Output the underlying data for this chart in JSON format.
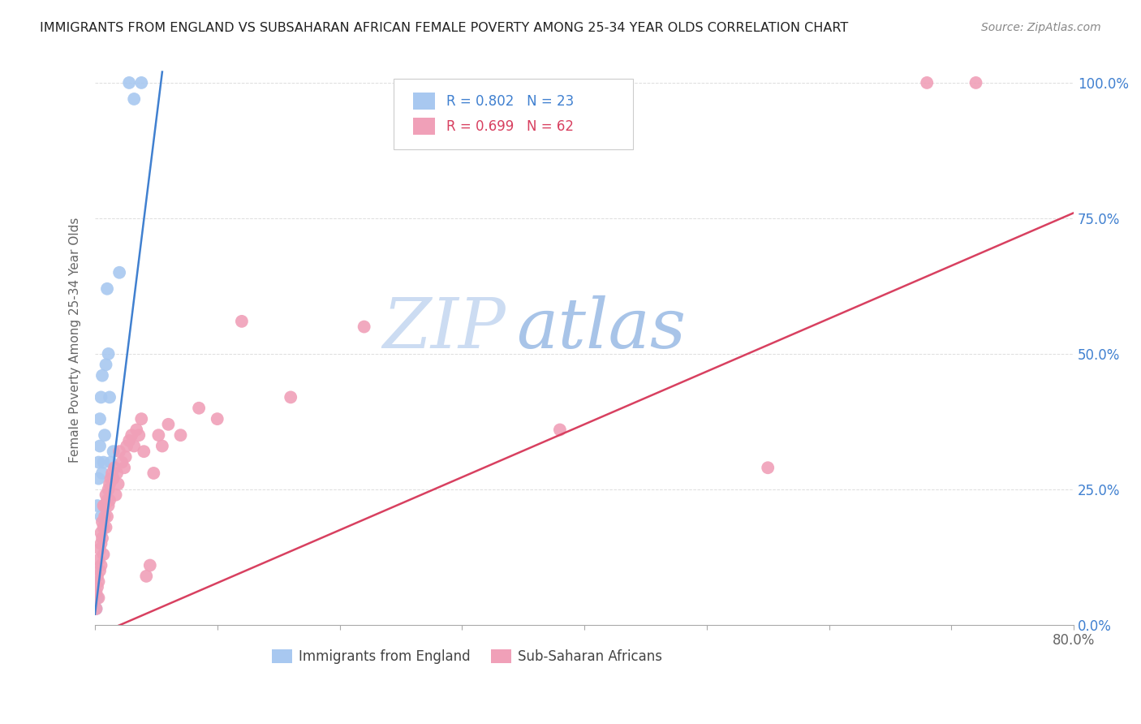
{
  "title": "IMMIGRANTS FROM ENGLAND VS SUBSAHARAN AFRICAN FEMALE POVERTY AMONG 25-34 YEAR OLDS CORRELATION CHART",
  "source": "Source: ZipAtlas.com",
  "ylabel": "Female Poverty Among 25-34 Year Olds",
  "ytick_labels": [
    "0.0%",
    "25.0%",
    "50.0%",
    "75.0%",
    "100.0%"
  ],
  "ytick_values": [
    0.0,
    0.25,
    0.5,
    0.75,
    1.0
  ],
  "xtick_values": [
    0.0,
    0.1,
    0.2,
    0.3,
    0.4,
    0.5,
    0.6,
    0.7,
    0.8
  ],
  "xtick_labels_show": {
    "0": "0.0%",
    "0.8": "80.0%"
  },
  "xlim": [
    0.0,
    0.8
  ],
  "ylim": [
    0.0,
    1.05
  ],
  "blue_R": 0.802,
  "blue_N": 23,
  "pink_R": 0.699,
  "pink_N": 62,
  "legend_label_blue": "Immigrants from England",
  "legend_label_pink": "Sub-Saharan Africans",
  "blue_color": "#a8c8f0",
  "pink_color": "#f0a0b8",
  "blue_line_color": "#4080d0",
  "pink_line_color": "#d84060",
  "watermark_zip_color": "#c8d8f0",
  "watermark_atlas_color": "#a0c0e8",
  "blue_line_x0": 0.0,
  "blue_line_y0": 0.02,
  "blue_line_x1": 0.055,
  "blue_line_y1": 1.02,
  "pink_line_x0": 0.0,
  "pink_line_y0": -0.02,
  "pink_line_x1": 0.8,
  "pink_line_y1": 0.76,
  "blue_x": [
    0.001,
    0.002,
    0.002,
    0.003,
    0.003,
    0.004,
    0.004,
    0.005,
    0.005,
    0.006,
    0.006,
    0.007,
    0.008,
    0.009,
    0.01,
    0.011,
    0.012,
    0.013,
    0.015,
    0.02,
    0.028,
    0.032,
    0.038
  ],
  "blue_y": [
    0.03,
    0.05,
    0.22,
    0.27,
    0.3,
    0.33,
    0.38,
    0.2,
    0.42,
    0.46,
    0.28,
    0.3,
    0.35,
    0.48,
    0.62,
    0.5,
    0.42,
    0.3,
    0.32,
    0.65,
    1.0,
    0.97,
    1.0
  ],
  "pink_x": [
    0.001,
    0.001,
    0.002,
    0.002,
    0.003,
    0.003,
    0.003,
    0.004,
    0.004,
    0.005,
    0.005,
    0.005,
    0.006,
    0.006,
    0.007,
    0.007,
    0.007,
    0.008,
    0.008,
    0.009,
    0.009,
    0.01,
    0.01,
    0.011,
    0.011,
    0.012,
    0.012,
    0.013,
    0.014,
    0.015,
    0.016,
    0.017,
    0.018,
    0.019,
    0.02,
    0.022,
    0.024,
    0.025,
    0.026,
    0.028,
    0.03,
    0.032,
    0.034,
    0.036,
    0.038,
    0.04,
    0.042,
    0.045,
    0.048,
    0.052,
    0.055,
    0.06,
    0.07,
    0.085,
    0.1,
    0.12,
    0.16,
    0.22,
    0.38,
    0.55,
    0.68,
    0.72
  ],
  "pink_y": [
    0.03,
    0.06,
    0.07,
    0.09,
    0.05,
    0.08,
    0.12,
    0.1,
    0.14,
    0.11,
    0.15,
    0.17,
    0.16,
    0.19,
    0.13,
    0.18,
    0.22,
    0.2,
    0.22,
    0.24,
    0.18,
    0.2,
    0.23,
    0.22,
    0.25,
    0.23,
    0.26,
    0.27,
    0.28,
    0.27,
    0.29,
    0.24,
    0.28,
    0.26,
    0.32,
    0.3,
    0.29,
    0.31,
    0.33,
    0.34,
    0.35,
    0.33,
    0.36,
    0.35,
    0.38,
    0.32,
    0.09,
    0.11,
    0.28,
    0.35,
    0.33,
    0.37,
    0.35,
    0.4,
    0.38,
    0.56,
    0.42,
    0.55,
    0.36,
    0.29,
    1.0,
    1.0
  ],
  "figsize": [
    14.06,
    8.92
  ],
  "dpi": 100
}
